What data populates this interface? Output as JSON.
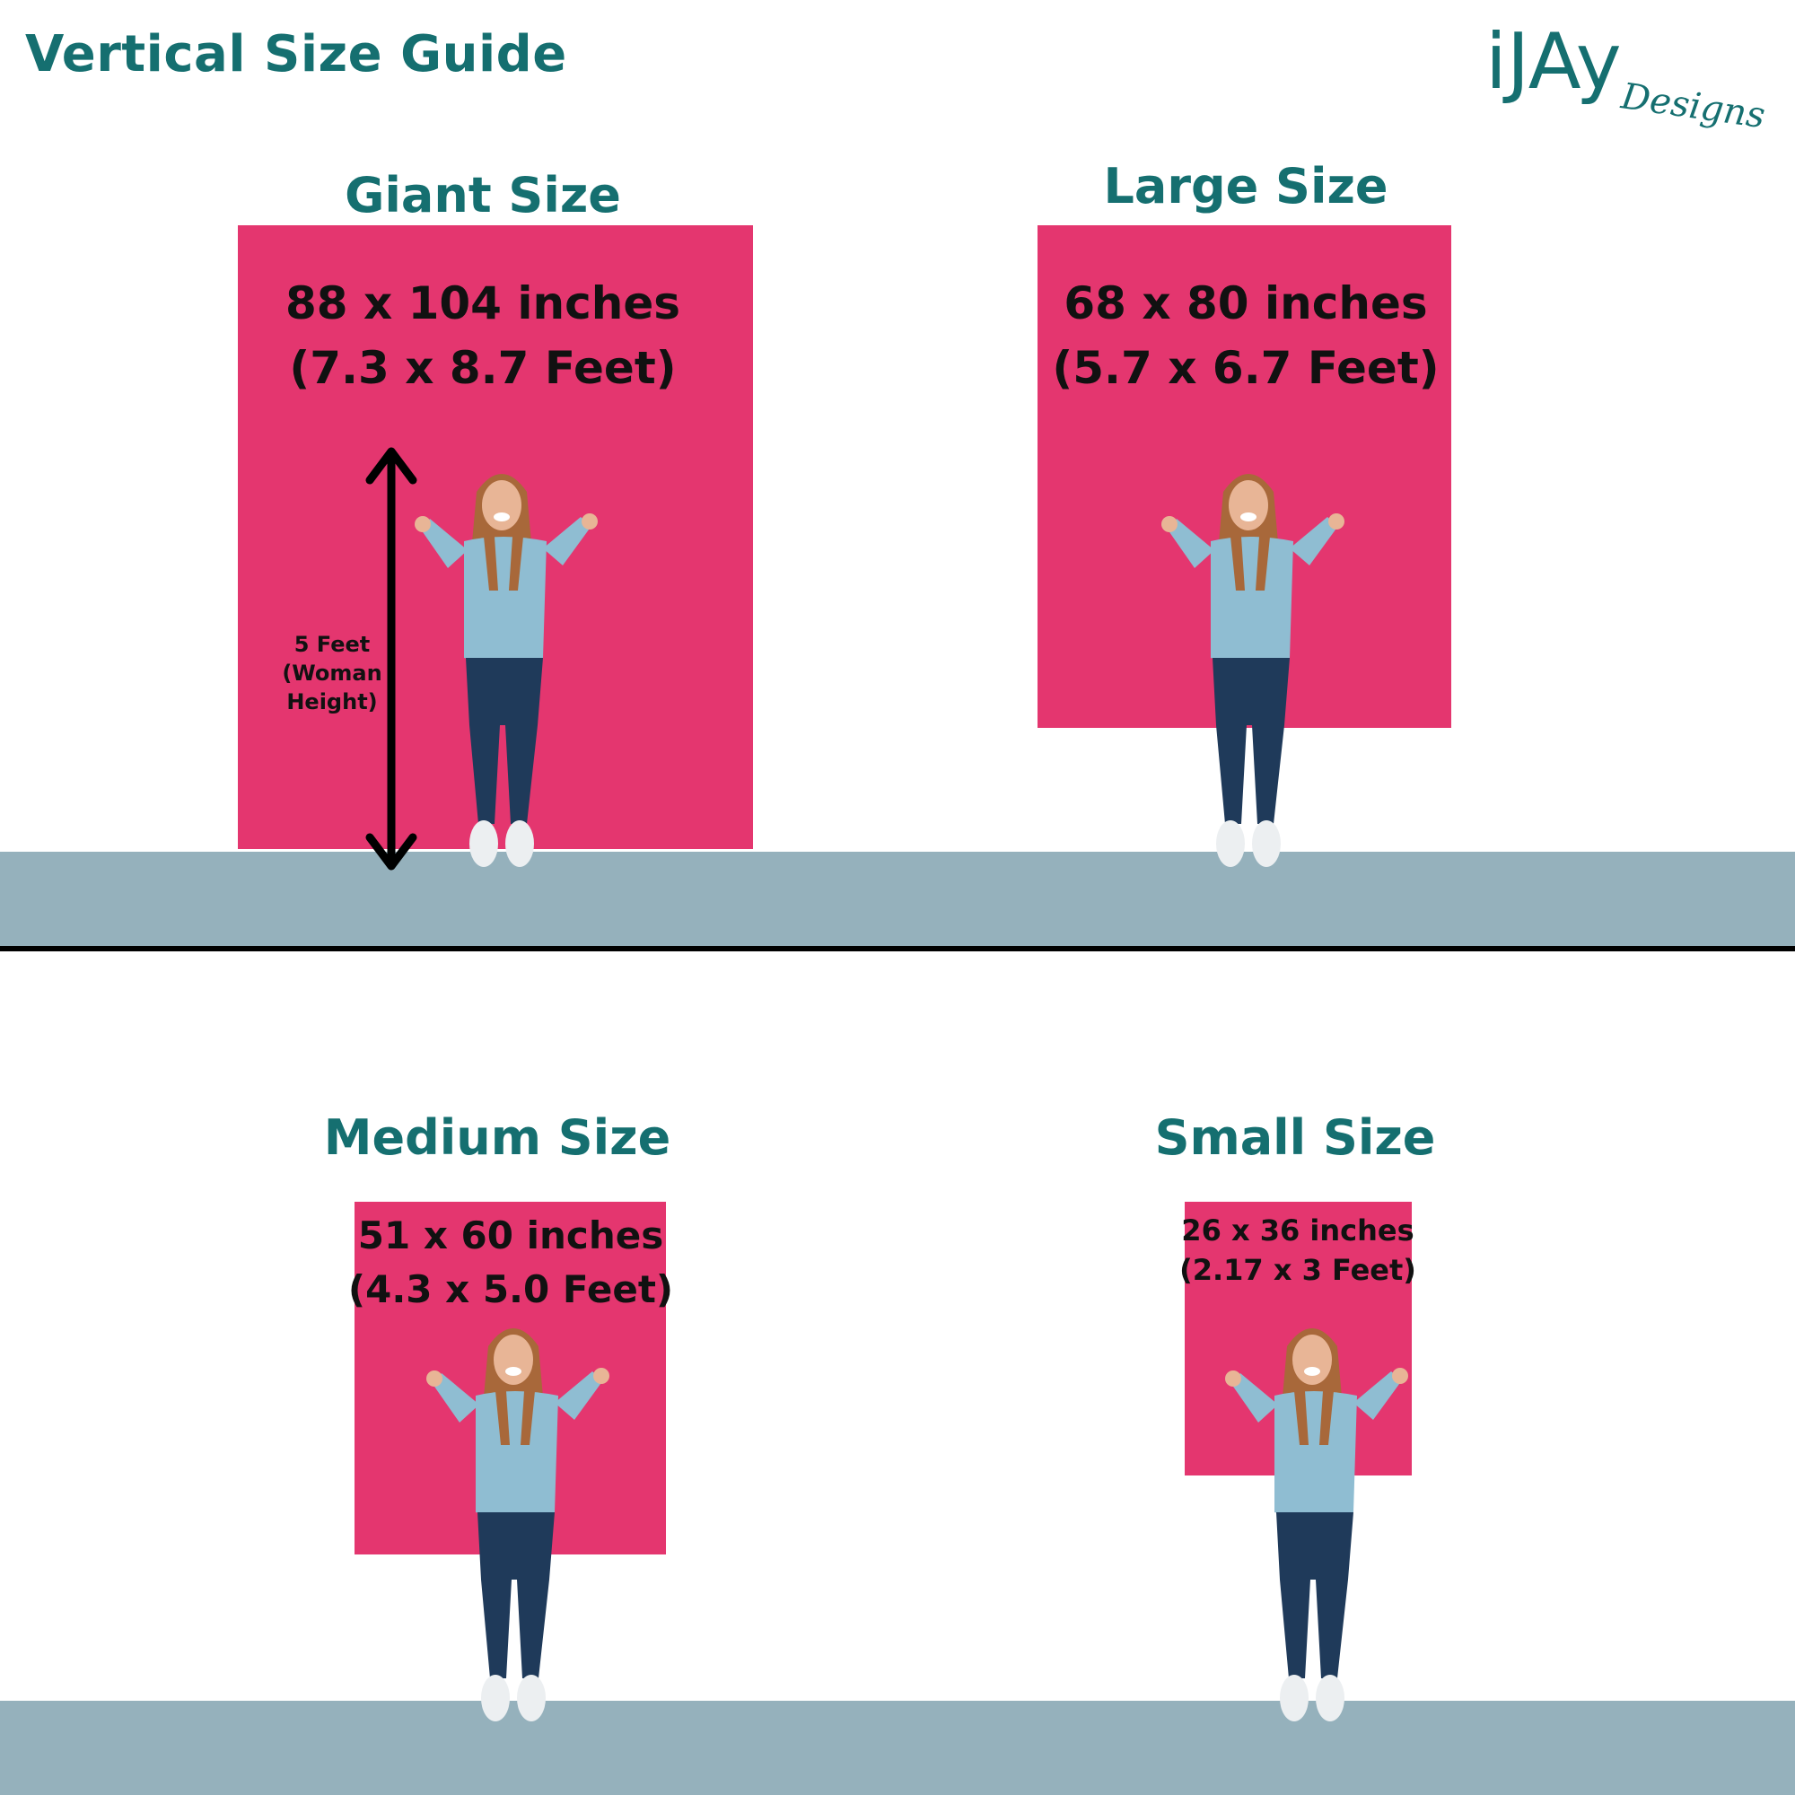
{
  "header": {
    "title": "Vertical Size Guide",
    "logo_text": "iJAy Designs"
  },
  "colors": {
    "accent_teal": "#156f70",
    "panel_pink": "#e4366f",
    "floor_blue_grey": "#95b1bc"
  },
  "sizes": [
    {
      "title": "Giant Size",
      "inches": "88 x 104 inches",
      "feet": "(7.3 x 8.7 Feet)"
    },
    {
      "title": "Large Size",
      "inches": "68 x 80 inches",
      "feet": "(5.7 x 6.7 Feet)"
    },
    {
      "title": "Medium Size",
      "inches": "51 x 60 inches",
      "feet": "(4.3 x 5.0 Feet)"
    },
    {
      "title": "Small Size",
      "inches": "26 x 36 inches",
      "feet": "(2.17 x 3 Feet)"
    }
  ],
  "height_marker": {
    "line1": "5 Feet",
    "line2": "(Woman",
    "line3": "Height)",
    "icon": "double-arrow-vertical"
  }
}
